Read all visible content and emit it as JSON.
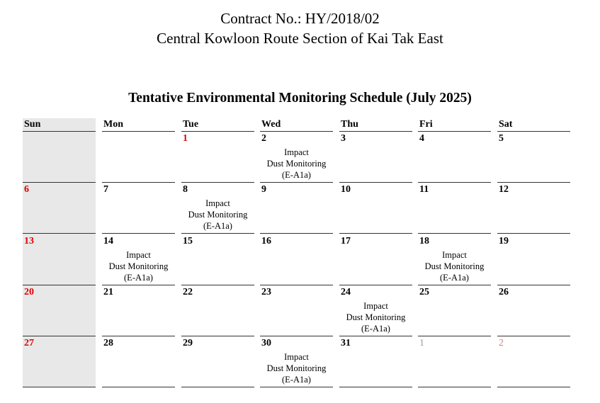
{
  "header": {
    "contract": "Contract No.: HY/2018/02",
    "project": "Central Kowloon Route Section of Kai Tak East",
    "schedule_title": "Tentative Environmental Monitoring Schedule (July 2025)"
  },
  "colors": {
    "holiday": "#e00000",
    "other_month": "#a0a0a0",
    "other_month_holiday": "#d08080",
    "sunday_bg": "#e8e8e8"
  },
  "weekdays": [
    "Sun",
    "Mon",
    "Tue",
    "Wed",
    "Thu",
    "Fri",
    "Sat"
  ],
  "weeks": [
    [
      {
        "day": ""
      },
      {
        "day": ""
      },
      {
        "day": "1",
        "style": "holiday"
      },
      {
        "day": "2",
        "event": [
          "Impact",
          "Dust Monitoring",
          "(E-A1a)"
        ]
      },
      {
        "day": "3"
      },
      {
        "day": "4"
      },
      {
        "day": "5"
      }
    ],
    [
      {
        "day": "6",
        "style": "holiday"
      },
      {
        "day": "7"
      },
      {
        "day": "8",
        "event": [
          "Impact",
          "Dust Monitoring",
          "(E-A1a)"
        ]
      },
      {
        "day": "9"
      },
      {
        "day": "10"
      },
      {
        "day": "11"
      },
      {
        "day": "12"
      }
    ],
    [
      {
        "day": "13",
        "style": "holiday"
      },
      {
        "day": "14",
        "event": [
          "Impact",
          "Dust Monitoring",
          "(E-A1a)"
        ]
      },
      {
        "day": "15"
      },
      {
        "day": "16"
      },
      {
        "day": "17"
      },
      {
        "day": "18",
        "event": [
          "Impact",
          "Dust Monitoring",
          "(E-A1a)"
        ]
      },
      {
        "day": "19"
      }
    ],
    [
      {
        "day": "20",
        "style": "holiday"
      },
      {
        "day": "21"
      },
      {
        "day": "22"
      },
      {
        "day": "23"
      },
      {
        "day": "24",
        "event": [
          "Impact",
          "Dust Monitoring",
          "(E-A1a)"
        ]
      },
      {
        "day": "25"
      },
      {
        "day": "26"
      }
    ],
    [
      {
        "day": "27",
        "style": "holiday"
      },
      {
        "day": "28"
      },
      {
        "day": "29"
      },
      {
        "day": "30",
        "event": [
          "Impact",
          "Dust Monitoring",
          "(E-A1a)"
        ]
      },
      {
        "day": "31"
      },
      {
        "day": "1",
        "style": "other_month"
      },
      {
        "day": "2",
        "style": "other_month_holiday"
      }
    ]
  ]
}
